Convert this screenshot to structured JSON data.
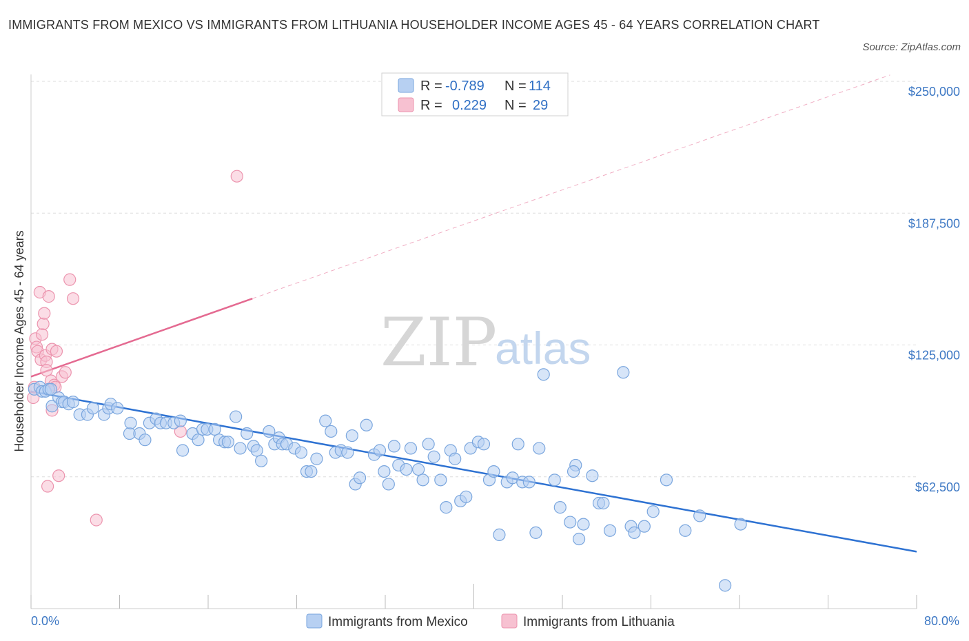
{
  "title": "IMMIGRANTS FROM MEXICO VS IMMIGRANTS FROM LITHUANIA HOUSEHOLDER INCOME AGES 45 - 64 YEARS CORRELATION CHART",
  "source": "Source: ZipAtlas.com",
  "watermark": {
    "zip": "ZIP",
    "atlas": "atlas"
  },
  "colors": {
    "mexico_fill": "#b7d0f2",
    "mexico_stroke": "#7aa6de",
    "mexico_line": "#2e72d2",
    "lithuania_fill": "#f7c1d1",
    "lithuania_stroke": "#ec94ae",
    "lithuania_line": "#e46a91",
    "grid": "#dddddd",
    "tick_label": "#3d78c4"
  },
  "stats": {
    "r_label": "R =",
    "n_label": "N =",
    "mexico": {
      "r": "-0.789",
      "n": "114"
    },
    "lithuania": {
      "r": "0.229",
      "n": "29"
    }
  },
  "chart_data": {
    "type": "scatter",
    "title": "IMMIGRANTS FROM MEXICO VS IMMIGRANTS FROM LITHUANIA HOUSEHOLDER INCOME AGES 45 - 64 YEARS CORRELATION CHART",
    "xlabel": "",
    "ylabel": "Householder Income Ages 45 - 64 years",
    "xlim": [
      0,
      80
    ],
    "ylim": [
      0,
      250000
    ],
    "x_tick_labels": [
      "0.0%",
      "80.0%"
    ],
    "y_ticks": [
      62500,
      125000,
      187500,
      250000
    ],
    "y_tick_labels": [
      "$62,500",
      "$125,000",
      "$187,500",
      "$250,000"
    ],
    "grid": true,
    "legend_position": "bottom-center",
    "series": [
      {
        "name": "Immigrants from Mexico",
        "r": -0.789,
        "n": 114,
        "trend": {
          "x": [
            0,
            80
          ],
          "y": [
            103000,
            27000
          ]
        },
        "points": [
          [
            0.3,
            104000
          ],
          [
            0.8,
            105000
          ],
          [
            1.0,
            103000
          ],
          [
            1.3,
            103000
          ],
          [
            1.6,
            104000
          ],
          [
            1.8,
            104000
          ],
          [
            1.9,
            96000
          ],
          [
            2.5,
            100000
          ],
          [
            2.8,
            98000
          ],
          [
            3.0,
            98000
          ],
          [
            3.4,
            97000
          ],
          [
            3.8,
            98000
          ],
          [
            4.4,
            92000
          ],
          [
            5.1,
            92000
          ],
          [
            5.6,
            95000
          ],
          [
            6.6,
            92000
          ],
          [
            7.0,
            95000
          ],
          [
            7.2,
            97000
          ],
          [
            7.8,
            95000
          ],
          [
            8.9,
            83000
          ],
          [
            9.0,
            88000
          ],
          [
            9.8,
            83000
          ],
          [
            10.3,
            80000
          ],
          [
            10.7,
            88000
          ],
          [
            11.3,
            90000
          ],
          [
            11.7,
            88000
          ],
          [
            12.2,
            88000
          ],
          [
            12.9,
            88000
          ],
          [
            13.5,
            89000
          ],
          [
            13.7,
            75000
          ],
          [
            14.6,
            83000
          ],
          [
            15.1,
            80000
          ],
          [
            15.5,
            85000
          ],
          [
            15.9,
            85000
          ],
          [
            16.6,
            85000
          ],
          [
            17.0,
            80000
          ],
          [
            17.5,
            79000
          ],
          [
            17.8,
            79000
          ],
          [
            18.5,
            91000
          ],
          [
            18.9,
            76000
          ],
          [
            19.5,
            83000
          ],
          [
            20.1,
            77000
          ],
          [
            20.4,
            75000
          ],
          [
            20.8,
            70000
          ],
          [
            21.5,
            84000
          ],
          [
            22.0,
            78000
          ],
          [
            22.4,
            81000
          ],
          [
            22.7,
            78000
          ],
          [
            23.1,
            78000
          ],
          [
            23.8,
            76000
          ],
          [
            24.4,
            74000
          ],
          [
            24.9,
            65000
          ],
          [
            25.3,
            65000
          ],
          [
            25.8,
            71000
          ],
          [
            26.6,
            89000
          ],
          [
            27.1,
            84000
          ],
          [
            27.5,
            74000
          ],
          [
            28.0,
            75000
          ],
          [
            28.6,
            74000
          ],
          [
            29.0,
            82000
          ],
          [
            29.3,
            59000
          ],
          [
            29.7,
            62000
          ],
          [
            30.3,
            87000
          ],
          [
            31.0,
            73000
          ],
          [
            31.5,
            75000
          ],
          [
            31.9,
            65000
          ],
          [
            32.3,
            59000
          ],
          [
            32.8,
            77000
          ],
          [
            33.2,
            68000
          ],
          [
            33.9,
            66000
          ],
          [
            34.3,
            76000
          ],
          [
            35.0,
            66000
          ],
          [
            35.4,
            61000
          ],
          [
            35.9,
            78000
          ],
          [
            36.4,
            72000
          ],
          [
            37.0,
            61000
          ],
          [
            37.5,
            48000
          ],
          [
            37.9,
            75000
          ],
          [
            38.3,
            71000
          ],
          [
            38.8,
            51000
          ],
          [
            39.3,
            53000
          ],
          [
            39.7,
            76000
          ],
          [
            40.4,
            79000
          ],
          [
            40.9,
            78000
          ],
          [
            41.4,
            61000
          ],
          [
            41.8,
            65000
          ],
          [
            42.3,
            35000
          ],
          [
            43.0,
            60000
          ],
          [
            43.5,
            62000
          ],
          [
            44.0,
            78000
          ],
          [
            44.4,
            60000
          ],
          [
            45.0,
            60000
          ],
          [
            45.6,
            36000
          ],
          [
            45.9,
            76000
          ],
          [
            47.3,
            61000
          ],
          [
            47.8,
            48000
          ],
          [
            48.7,
            41000
          ],
          [
            49.2,
            68000
          ],
          [
            49.0,
            65000
          ],
          [
            49.5,
            33000
          ],
          [
            49.9,
            40000
          ],
          [
            50.7,
            63000
          ],
          [
            51.3,
            50000
          ],
          [
            51.7,
            50000
          ],
          [
            52.3,
            37000
          ],
          [
            53.5,
            112000
          ],
          [
            54.2,
            39000
          ],
          [
            54.5,
            36000
          ],
          [
            55.4,
            39000
          ],
          [
            56.2,
            46000
          ],
          [
            57.4,
            61000
          ],
          [
            59.1,
            37000
          ],
          [
            60.4,
            44000
          ],
          [
            62.7,
            11000
          ],
          [
            64.1,
            40000
          ],
          [
            46.3,
            111000
          ]
        ]
      },
      {
        "name": "Immigrants from Lithuania",
        "r": 0.229,
        "n": 29,
        "trend": {
          "x": [
            0,
            20
          ],
          "y": [
            110000,
            147000
          ]
        },
        "extension": {
          "x": [
            20,
            77.6
          ],
          "y": [
            147000,
            253000
          ]
        },
        "points": [
          [
            0.2,
            100000
          ],
          [
            0.3,
            105000
          ],
          [
            0.4,
            128000
          ],
          [
            0.5,
            124000
          ],
          [
            0.6,
            122000
          ],
          [
            0.8,
            150000
          ],
          [
            0.9,
            118000
          ],
          [
            1.0,
            130000
          ],
          [
            1.1,
            135000
          ],
          [
            1.2,
            140000
          ],
          [
            1.3,
            120000
          ],
          [
            1.4,
            117000
          ],
          [
            1.4,
            113000
          ],
          [
            1.5,
            58000
          ],
          [
            1.6,
            148000
          ],
          [
            1.8,
            108000
          ],
          [
            1.9,
            123000
          ],
          [
            1.9,
            94000
          ],
          [
            2.1,
            106000
          ],
          [
            2.2,
            105000
          ],
          [
            2.3,
            122000
          ],
          [
            2.5,
            63000
          ],
          [
            2.8,
            110000
          ],
          [
            3.1,
            112000
          ],
          [
            3.5,
            156000
          ],
          [
            3.8,
            147000
          ],
          [
            5.9,
            42000
          ],
          [
            13.5,
            84000
          ],
          [
            18.6,
            205000
          ]
        ]
      }
    ]
  }
}
